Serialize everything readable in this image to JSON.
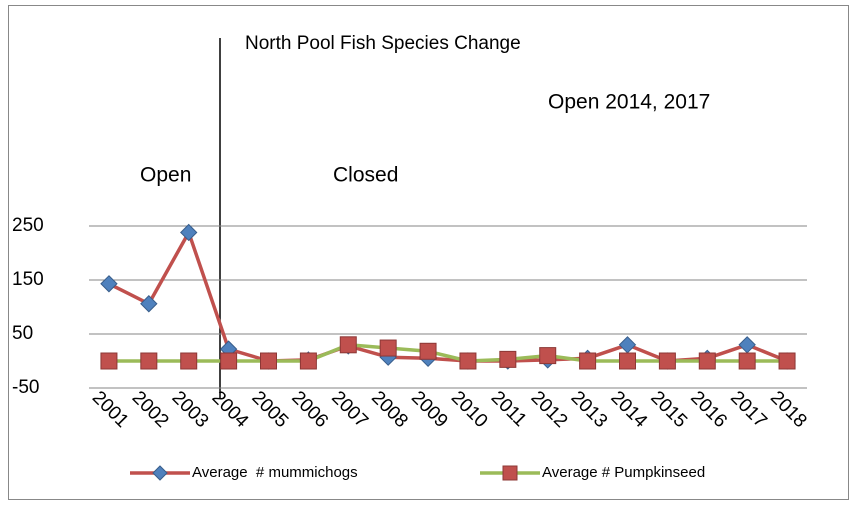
{
  "chart_data": {
    "type": "line",
    "title": "North Pool Fish Species Change",
    "annotations": [
      "Open 2014, 2017",
      "Open",
      "Closed"
    ],
    "categories": [
      "2001",
      "2002",
      "2003",
      "2004",
      "2005",
      "2006",
      "2007",
      "2008",
      "2009",
      "2010",
      "2011",
      "2012",
      "2013",
      "2014",
      "2015",
      "2016",
      "2017",
      "2018"
    ],
    "series": [
      {
        "name": "Average  # mummichogs",
        "color": "#c0504d",
        "marker": "diamond",
        "marker_color": "#4f81bd",
        "values": [
          143,
          106,
          238,
          22,
          0,
          2,
          28,
          7,
          5,
          0,
          0,
          2,
          5,
          30,
          0,
          5,
          30,
          0
        ]
      },
      {
        "name": "Average # Pumpkinseed",
        "color": "#9bbb59",
        "marker": "square",
        "marker_color": "#c0504d",
        "values": [
          0,
          0,
          0,
          0,
          0,
          0,
          30,
          24,
          18,
          0,
          3,
          10,
          0,
          0,
          0,
          0,
          0,
          0
        ]
      }
    ],
    "ylim": [
      -50,
      250
    ],
    "yticks": [
      -50,
      50,
      150,
      250
    ],
    "grid": true,
    "legend": "bottom"
  }
}
